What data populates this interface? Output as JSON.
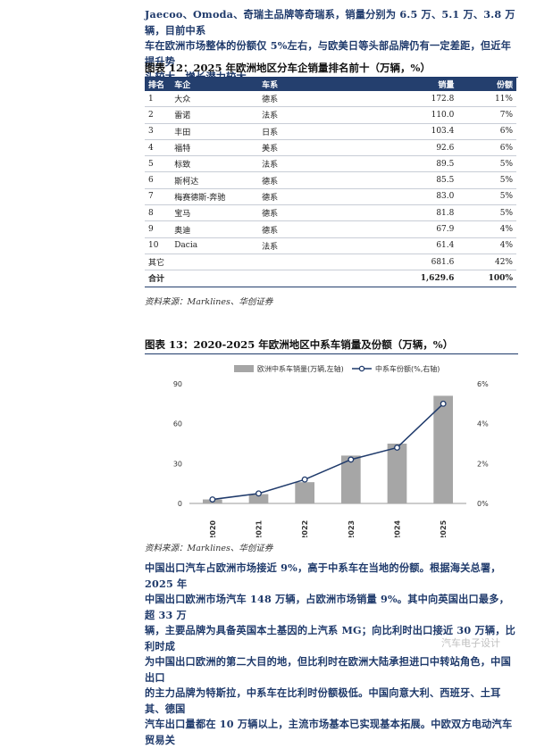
{
  "intro": {
    "line1": "Jaecoo、Omoda、奇瑞主品牌等奇瑞系，销量分别为 6.5 万、5.1 万、3.8 万辆，目前中系",
    "line2": "车在欧洲市场整体的份额仅 5%左右，与欧美日等头部品牌仍有一定差距，但近年提升势",
    "line3": "头较大、增长潜力较大。"
  },
  "table_caption": "图表 12：2025 年欧洲地区分车企销量排名前十（万辆，%）",
  "table": {
    "headers": [
      "排名",
      "车企",
      "车系",
      "销量",
      "份额"
    ],
    "rows": [
      [
        "1",
        "大众",
        "德系",
        "172.8",
        "11%"
      ],
      [
        "2",
        "雷诺",
        "法系",
        "110.0",
        "7%"
      ],
      [
        "3",
        "丰田",
        "日系",
        "103.4",
        "6%"
      ],
      [
        "4",
        "福特",
        "美系",
        "92.6",
        "6%"
      ],
      [
        "5",
        "标致",
        "法系",
        "89.5",
        "5%"
      ],
      [
        "6",
        "斯柯达",
        "德系",
        "85.5",
        "5%"
      ],
      [
        "7",
        "梅赛德斯-奔驰",
        "德系",
        "83.0",
        "5%"
      ],
      [
        "8",
        "宝马",
        "德系",
        "81.8",
        "5%"
      ],
      [
        "9",
        "奥迪",
        "德系",
        "67.9",
        "4%"
      ],
      [
        "10",
        "Dacia",
        "法系",
        "61.4",
        "4%"
      ],
      [
        "其它",
        "",
        "",
        "681.6",
        "42%"
      ],
      [
        "合计",
        "",
        "",
        "1,629.6",
        "100%"
      ]
    ]
  },
  "source1": "资料来源：Marklines、华创证券",
  "chart_caption": "图表 13：2020-2025 年欧洲地区中系车销量及份额（万辆，%）",
  "chart_data": {
    "type": "bar",
    "categories": [
      "2020",
      "2021",
      "2022",
      "2023",
      "2024",
      "2025"
    ],
    "series": [
      {
        "name": "欧洲中系车销量(万辆,左轴)",
        "type": "bar",
        "axis": "left",
        "values": [
          3,
          7,
          16,
          36,
          45,
          81
        ]
      },
      {
        "name": "中系车份额(%,右轴)",
        "type": "line",
        "axis": "right",
        "values": [
          0.2,
          0.5,
          1.2,
          2.2,
          2.8,
          5.0
        ]
      }
    ],
    "left_axis": {
      "ticks": [
        "0",
        "30",
        "60",
        "90"
      ],
      "range": [
        0,
        90
      ]
    },
    "right_axis": {
      "ticks": [
        "0%",
        "2%",
        "4%",
        "6%"
      ],
      "range": [
        0,
        6
      ]
    },
    "bar_color": "#a6a6a6",
    "line_color": "#1f3a6b",
    "legend_position": "top"
  },
  "source2": "资料来源：Marklines、华创证券",
  "outro": {
    "line1": "中国出口汽车占欧洲市场接近 9%，高于中系车在当地的份额。根据海关总署，2025 年",
    "line2": "中国出口欧洲市场汽车 148 万辆，占欧洲市场销量 9%。其中向英国出口最多，超 33 万",
    "line3": "辆，主要品牌为具备英国本土基因的上汽系 MG；向比利时出口接近 30 万辆，比利时成",
    "line4": "为中国出口欧洲的第二大目的地，但比利时在欧洲大陆承担进口中转站角色，中国出口",
    "line5": "的主力品牌为特斯拉，中系车在比利时份额极低。中国向意大利、西班牙、土耳其、德国",
    "line6": "汽车出口量都在 10 万辆以上，主流市场基本已实现基本拓展。中欧双方电动汽车贸易关"
  },
  "watermark": "汽车电子设计"
}
